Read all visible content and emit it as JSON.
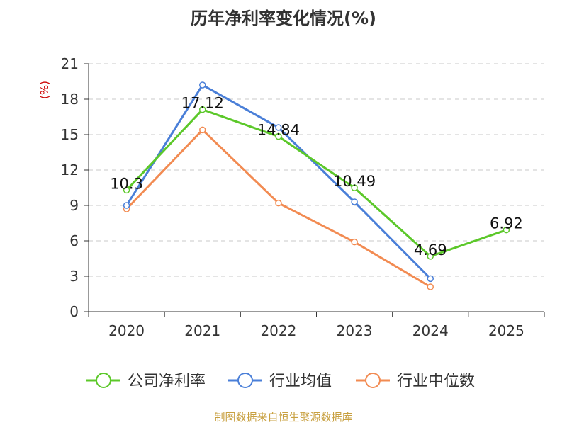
{
  "chart_data": {
    "type": "line",
    "title": "历年净利率变化情况(%)",
    "ylabel": "(%)",
    "xlabel": "",
    "categories": [
      "2020",
      "2021",
      "2022",
      "2023",
      "2024",
      "2025"
    ],
    "ylim": [
      0,
      21
    ],
    "yticks": [
      0,
      3,
      6,
      9,
      12,
      15,
      18,
      21
    ],
    "yticks_labels": [
      "0",
      "3",
      "6",
      "9",
      "12",
      "15",
      "18",
      "21"
    ],
    "grid": true,
    "legend_position": "bottom",
    "series": [
      {
        "name": "公司净利率",
        "color": "#5cc82a",
        "values": [
          10.3,
          17.12,
          14.84,
          10.49,
          4.69,
          6.92
        ],
        "labels": [
          "10.3",
          "17.12",
          "14.84",
          "10.49",
          "4.69",
          "6.92"
        ]
      },
      {
        "name": "行业均值",
        "color": "#4a7fd8",
        "values": [
          9.0,
          19.2,
          15.6,
          9.3,
          2.8,
          null
        ]
      },
      {
        "name": "行业中位数",
        "color": "#f28b52",
        "values": [
          8.7,
          15.4,
          9.2,
          5.9,
          2.1,
          null
        ]
      }
    ],
    "source": "制图数据来自恒生聚源数据库"
  }
}
